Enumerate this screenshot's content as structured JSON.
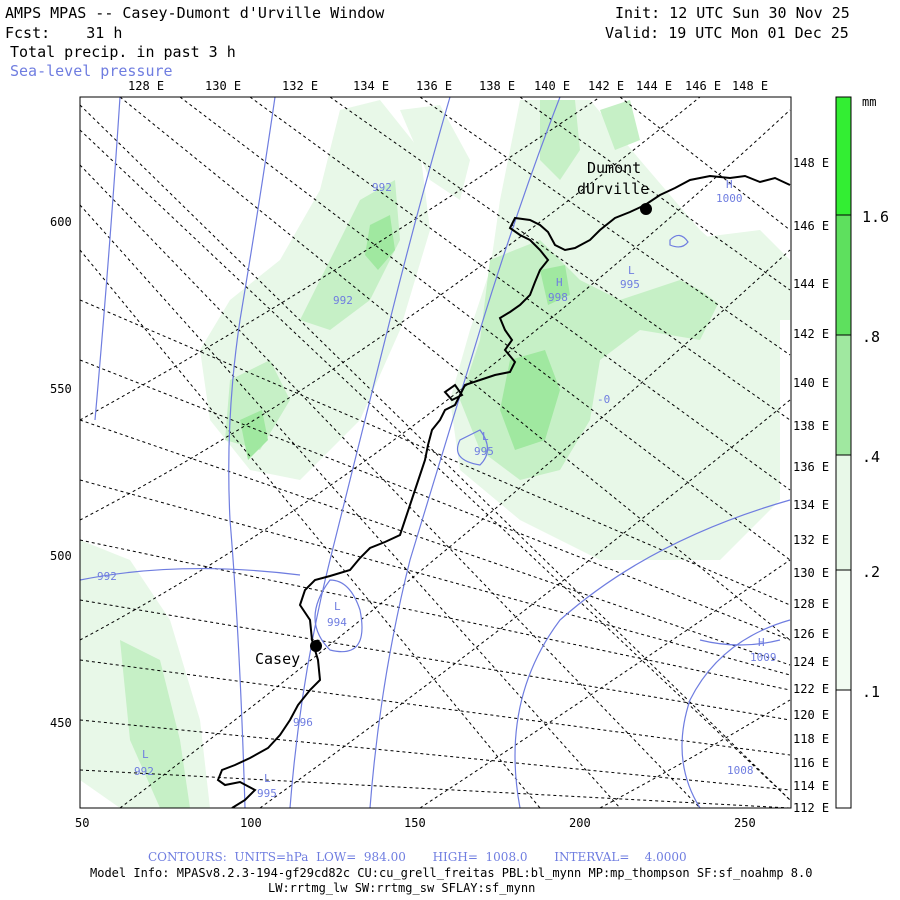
{
  "header": {
    "title": "AMPS MPAS -- Casey-Dumont d'Urville Window",
    "fcst": "Fcst:    31 h",
    "init": "Init: 12 UTC Sun 30 Nov 25",
    "valid": "Valid: 19 UTC Mon 01 Dec 25",
    "field1": "Total precip. in past 3 h",
    "field2": "Sea-level pressure"
  },
  "top_lon_labels": [
    "128 E",
    "130 E",
    "132 E",
    "134 E",
    "136 E",
    "138 E",
    "140 E",
    "142 E",
    "144 E",
    "146 E",
    "148 E"
  ],
  "right_lon_labels": [
    "148 E",
    "146 E",
    "144 E",
    "142 E",
    "140 E",
    "138 E",
    "136 E",
    "134 E",
    "132 E",
    "130 E",
    "128 E",
    "126 E",
    "124 E",
    "122 E",
    "120 E",
    "118 E",
    "116 E",
    "114 E",
    "112 E"
  ],
  "x_axis": {
    "ticks": [
      "50",
      "100",
      "150",
      "200",
      "250"
    ]
  },
  "y_axis": {
    "ticks": [
      "600",
      "550",
      "500",
      "450"
    ]
  },
  "colorbar": {
    "unit": "mm",
    "labels": [
      "1.6",
      ".8",
      ".4",
      ".2",
      ".1"
    ],
    "colors": [
      "#ffffff",
      "#e8f8e8",
      "#c6f0c6",
      "#a0e8a0",
      "#5ee05e",
      "#33ee33"
    ]
  },
  "stations": [
    {
      "name": "Casey"
    },
    {
      "name": "Dumont"
    },
    {
      "name": "dUrville"
    }
  ],
  "pressure_labels": [
    {
      "sym": "H",
      "val": "1000"
    },
    {
      "sym": "H",
      "val": "998"
    },
    {
      "sym": "L",
      "val": "995"
    },
    {
      "sym": "L",
      "val": "995"
    },
    {
      "sym": "L",
      "val": "994"
    },
    {
      "sym": "H",
      "val": "1009"
    },
    {
      "sym": "L",
      "val": "992"
    },
    {
      "sym": "L",
      "val": "995"
    }
  ],
  "isobar_values": [
    "992",
    "992",
    "992",
    "996",
    "1008",
    "-0"
  ],
  "footer": {
    "contours": "CONTOURS:  UNITS=hPa  LOW=  984.00       HIGH=  1008.0       INTERVAL=    4.0000",
    "model_info": "Model Info: MPASv8.2.3-194-gf29cd82c CU:cu_grell_freitas PBL:bl_mynn MP:mp_thompson SF:sf_noahmp 8.0",
    "model_info2": "LW:rrtmg_lw SW:rrtmg_sw SFLAY:sf_mynn"
  }
}
